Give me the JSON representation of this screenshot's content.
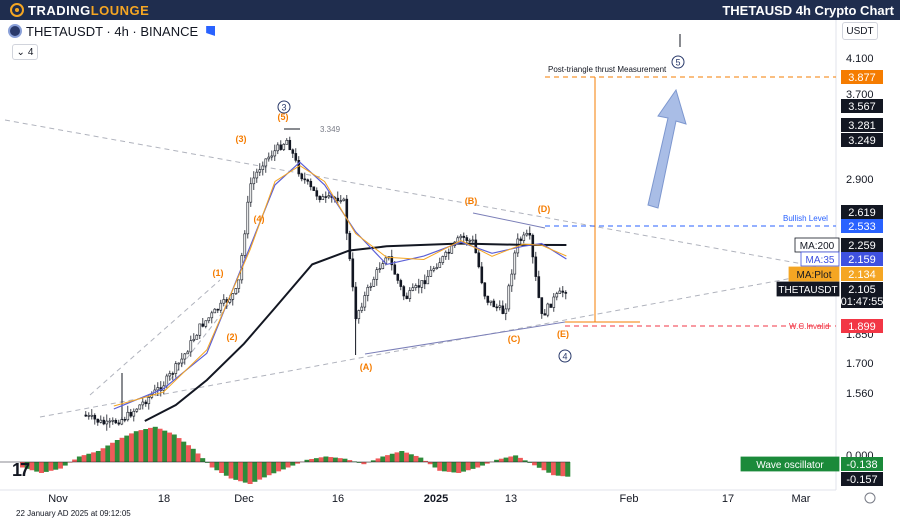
{
  "header": {
    "logo_text_a": "TRADING",
    "logo_text_b": "LOUNGE",
    "title": "THETAUSD 4h Crypto Chart"
  },
  "symbol": {
    "name": "THETAUSDT",
    "interval": "4h",
    "exchange": "BINANCE",
    "line": "THETAUSDT · 4h · BINANCE"
  },
  "indicator_count": "4",
  "currency": "USDT",
  "timestamp": "22 January AD 2025 at 09:12:05",
  "tv_logo": "17",
  "chart_data": {
    "type": "line",
    "price_axis_ticks": [
      "4.100",
      "3.700",
      "2.900",
      "1.850",
      "1.700",
      "1.560",
      "0.000"
    ],
    "time_axis_ticks": [
      "Nov",
      "18",
      "Dec",
      "16",
      "2025",
      "13",
      "Feb",
      "17",
      "Mar"
    ],
    "price_tags": [
      {
        "name": "Post-triangle target",
        "value": "3.877",
        "color": "#f57c00"
      },
      {
        "name": "",
        "value": "3.567",
        "color": "#131722"
      },
      {
        "name": "",
        "value": "3.281",
        "color": "#131722"
      },
      {
        "name": "",
        "value": "3.249",
        "color": "#131722"
      },
      {
        "name": "",
        "value": "2.619",
        "color": "#131722"
      },
      {
        "name": "Bullish Level",
        "value": "2.533",
        "color": "#2962ff"
      },
      {
        "name": "MA:200",
        "value": "2.259",
        "color": "#131722"
      },
      {
        "name": "MA:35",
        "value": "2.159",
        "color": "#2962ff"
      },
      {
        "name": "MA:Plot",
        "value": "2.134",
        "color": "#f5a623"
      },
      {
        "name": "THETAUSDT",
        "value": "2.105",
        "color": "#131722"
      },
      {
        "name": "countdown",
        "value": "01:47:55",
        "color": "#131722"
      },
      {
        "name": "W.C.Invalid",
        "value": "1.899",
        "color": "#f23645"
      },
      {
        "name": "Wave oscillator",
        "value": "-0.138",
        "color": "#1b8a3a"
      },
      {
        "name": "",
        "value": "-0.157",
        "color": "#131722"
      }
    ],
    "annotations": {
      "target_label": "Post-triangle thrust Measurement",
      "bullish_label": "Bullish Level",
      "invalid_label": "W.C.Invalid",
      "high_label": "3.349",
      "wave_labels": [
        "(1)",
        "(2)",
        "(3)",
        "(4)",
        "(5)",
        "(A)",
        "(B)",
        "(C)",
        "(D)",
        "(E)"
      ],
      "circled_labels": [
        "3",
        "4",
        "5"
      ]
    },
    "series": [
      {
        "name": "THETAUSDT",
        "x": [
          "Nov 5",
          "Nov 9",
          "Nov 12",
          "Nov 15",
          "Nov 18",
          "Nov 21",
          "Nov 24",
          "Nov 27",
          "Nov 30",
          "Dec 2",
          "Dec 4",
          "Dec 6",
          "Dec 8",
          "Dec 10",
          "Dec 12",
          "Dec 14",
          "Dec 17",
          "Dec 19",
          "Dec 21",
          "Dec 24",
          "Dec 27",
          "Dec 30",
          "Jan 1",
          "Jan 3",
          "Jan 5",
          "Jan 7",
          "Jan 9",
          "Jan 12",
          "Jan 14",
          "Jan 16",
          "Jan 18",
          "Jan 20",
          "Jan 22"
        ],
        "values": [
          1.45,
          1.4,
          1.44,
          1.52,
          1.6,
          1.72,
          1.9,
          2.0,
          2.1,
          2.85,
          3.05,
          3.15,
          3.25,
          2.95,
          2.8,
          2.72,
          2.75,
          1.95,
          2.1,
          2.2,
          2.05,
          2.12,
          2.15,
          2.2,
          2.38,
          2.3,
          2.05,
          1.97,
          2.3,
          2.4,
          1.95,
          2.05,
          2.105
        ]
      },
      {
        "name": "MA:200",
        "x": [
          "Nov 15",
          "Nov 20",
          "Nov 25",
          "Dec 1",
          "Dec 6",
          "Dec 12",
          "Dec 18",
          "Dec 24",
          "Dec 30",
          "Jan 5",
          "Jan 10",
          "Jan 15",
          "Jan 22"
        ],
        "values": [
          1.42,
          1.5,
          1.62,
          1.8,
          2.0,
          2.15,
          2.22,
          2.25,
          2.26,
          2.28,
          2.27,
          2.26,
          2.259
        ]
      },
      {
        "name": "MA:35",
        "x": [
          "Nov 10",
          "Nov 18",
          "Nov 25",
          "Dec 2",
          "Dec 6",
          "Dec 10",
          "Dec 14",
          "Dec 19",
          "Dec 24",
          "Dec 30",
          "Jan 5",
          "Jan 10",
          "Jan 15",
          "Jan 18",
          "Jan 22"
        ],
        "values": [
          1.48,
          1.58,
          1.75,
          2.25,
          2.85,
          3.05,
          2.85,
          2.45,
          2.15,
          2.18,
          2.3,
          2.2,
          2.25,
          2.28,
          2.159
        ]
      }
    ],
    "oscillator": {
      "name": "Wave oscillator",
      "values": [
        -0.05,
        -0.1,
        -0.06,
        0.05,
        0.1,
        0.2,
        0.28,
        0.32,
        0.25,
        0.12,
        -0.05,
        -0.15,
        -0.2,
        -0.12,
        -0.05,
        0.02,
        0.05,
        0.03,
        -0.02,
        0.05,
        0.1,
        0.04,
        -0.08,
        -0.1,
        -0.05,
        0.02,
        0.06,
        -0.03,
        -0.12,
        -0.138
      ]
    },
    "grid": false,
    "legend_placement": "right price scale"
  }
}
